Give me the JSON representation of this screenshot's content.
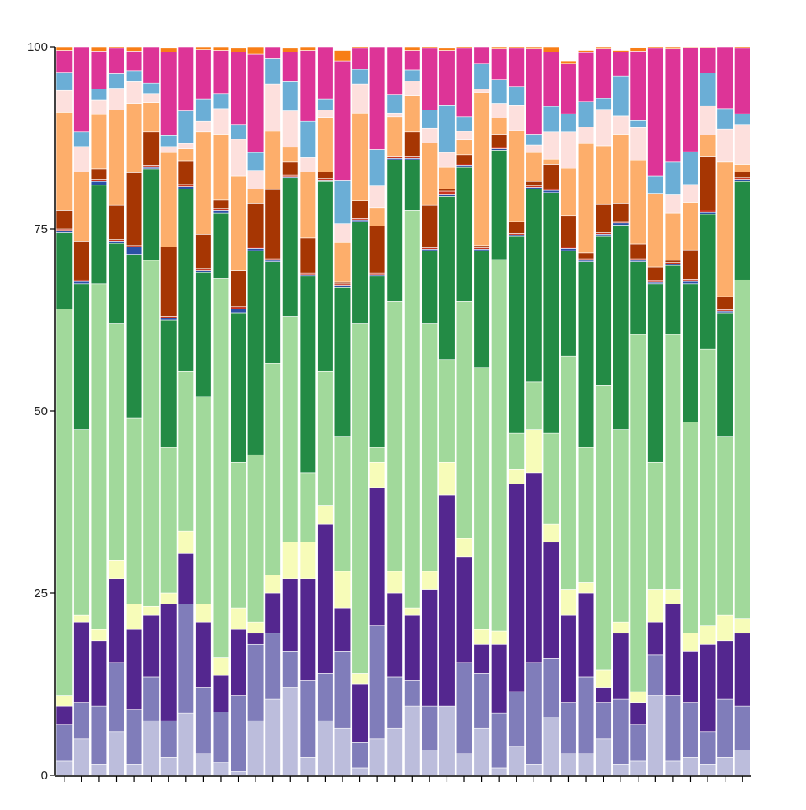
{
  "chart_data": {
    "type": "bar",
    "stacked": true,
    "orientation": "vertical",
    "title": "",
    "xlabel": "",
    "ylabel": "",
    "ylim": [
      0,
      100
    ],
    "yticks": [
      0,
      25,
      50,
      75,
      100
    ],
    "ytick_labels": [
      "0",
      "25",
      "50",
      "75",
      "100"
    ],
    "grid": false,
    "legend": "none",
    "bar_count": 40,
    "stack_order": [
      "c1",
      "c2",
      "c3",
      "c4",
      "c5",
      "c6",
      "c7",
      "c8",
      "c9",
      "c10",
      "c11",
      "c12",
      "c13",
      "c14"
    ],
    "colors": {
      "c1": "#bcbddc",
      "c2": "#807dba",
      "c3": "#54278f",
      "c4": "#f7fcb9",
      "c5": "#a1d99b",
      "c6": "#238b45",
      "c7": "#2b50a5",
      "c8": "#c8341f",
      "c9": "#a63603",
      "c10": "#fdae6b",
      "c11": "#fde0dd",
      "c12": "#6baed6",
      "c13": "#dd3497",
      "c14": "#f87e16"
    },
    "values": [
      [
        2,
        5,
        2.5,
        1.5,
        53,
        10.5,
        0.3,
        0.2,
        2.5,
        13.5,
        3,
        2.5,
        3,
        0.5
      ],
      [
        5,
        5,
        11,
        1,
        25.5,
        20,
        0.3,
        0.2,
        5.3,
        9.5,
        3.5,
        2,
        12,
        0.7
      ],
      [
        1.5,
        8,
        9,
        1.5,
        47.5,
        13.5,
        0.5,
        0.3,
        1.4,
        7.5,
        2,
        1.5,
        5.2,
        0.6
      ],
      [
        6,
        9.5,
        11.5,
        2.5,
        32.5,
        11,
        0.3,
        0.2,
        4.8,
        13,
        3,
        2,
        3.5,
        0.7
      ],
      [
        1.5,
        7.5,
        11,
        3.5,
        25.5,
        22.5,
        1,
        0.2,
        10,
        9.5,
        3,
        1.5,
        2.7,
        0.6
      ],
      [
        7.5,
        6,
        8.5,
        1.2,
        47.5,
        12.5,
        0.3,
        0.2,
        4.6,
        4,
        1.2,
        1.5,
        5,
        0.5
      ],
      [
        2.5,
        5,
        16,
        1.5,
        20,
        17.5,
        0.3,
        0.2,
        9.5,
        13,
        0.8,
        1.5,
        11.5,
        0.5
      ],
      [
        8.5,
        15,
        7,
        3,
        22,
        25,
        0.3,
        0.3,
        3.2,
        1.7,
        0.7,
        4.5,
        9,
        0.3
      ],
      [
        3,
        9,
        9,
        2.5,
        28.5,
        17,
        0.3,
        0.2,
        4.8,
        14,
        1.5,
        3,
        6.8,
        0.5
      ],
      [
        1.7,
        7,
        5,
        2.5,
        52,
        9,
        0.3,
        0.3,
        1.2,
        9,
        3.5,
        2,
        6,
        0.5
      ],
      [
        0.5,
        10.5,
        9,
        3,
        20,
        20.5,
        0.5,
        0.3,
        5,
        13,
        5,
        2,
        10,
        0.5
      ],
      [
        7.5,
        10.5,
        1.5,
        1.5,
        23,
        28,
        0.3,
        0.2,
        6,
        2,
        2.5,
        2.5,
        13.5,
        1
      ],
      [
        10.5,
        9,
        5.5,
        2.5,
        29,
        14,
        0.2,
        0.2,
        9.5,
        8,
        6.5,
        3.5,
        1.8,
        0.5
      ],
      [
        12,
        5,
        10,
        5,
        31,
        19,
        0.2,
        0.2,
        1.8,
        2,
        5,
        4,
        4.1,
        0.5
      ],
      [
        2.5,
        10.5,
        14,
        5,
        9.5,
        27,
        0.2,
        0.2,
        4.9,
        9,
        2,
        5,
        9.7,
        0.5
      ],
      [
        7.5,
        6.5,
        20.5,
        2.5,
        18.5,
        26,
        0.2,
        0.2,
        0.9,
        7.5,
        1,
        1.5,
        7.2,
        0.5
      ],
      [
        6.5,
        10.5,
        6,
        5,
        18.5,
        20.5,
        0.2,
        0.3,
        0.2,
        5.5,
        2.5,
        6,
        16.3,
        1.5
      ],
      [
        1,
        3.5,
        8,
        1.5,
        48,
        14,
        0.2,
        0.2,
        2.5,
        12,
        4,
        2,
        2.9,
        0.2
      ],
      [
        5,
        15.5,
        19,
        3.5,
        2,
        23.5,
        0.2,
        0.2,
        6.5,
        2.5,
        3,
        5,
        14.4,
        0.2
      ],
      [
        6.5,
        7,
        11.5,
        3,
        37,
        19.5,
        0.2,
        0.2,
        0,
        5.5,
        0.5,
        2.5,
        6.6,
        0.5
      ],
      [
        9.5,
        3.5,
        9,
        1,
        54.5,
        7,
        0.2,
        0.2,
        3.4,
        5,
        2,
        1.5,
        2.7,
        0.5
      ],
      [
        3.5,
        6,
        16,
        2.5,
        34,
        10,
        0.2,
        0.2,
        5.9,
        8.5,
        2,
        2.5,
        8.5,
        0.2
      ],
      [
        9.5,
        0,
        29,
        4.5,
        14,
        22.5,
        0.2,
        0.5,
        0.3,
        3,
        2,
        6.5,
        7.5,
        0.3
      ],
      [
        3,
        12.5,
        14.5,
        2.5,
        32.5,
        18.5,
        0.2,
        0.2,
        1.3,
        2,
        1.2,
        2,
        9.4,
        0.5
      ],
      [
        6.5,
        7.5,
        4,
        2,
        36,
        16,
        0.2,
        0.2,
        0.3,
        21,
        0.5,
        3.5,
        2.3,
        0.3
      ],
      [
        1,
        7.5,
        9.5,
        1.8,
        51,
        15,
        0.2,
        0.2,
        1.8,
        2.2,
        2,
        3.3,
        4.2,
        0.3
      ],
      [
        4,
        7.5,
        28.5,
        2,
        5,
        27,
        0.2,
        0.2,
        1.6,
        12.5,
        3.5,
        2.5,
        5.3,
        0.3
      ],
      [
        1.5,
        14,
        26,
        6,
        6.5,
        26.5,
        0.2,
        0.2,
        0.6,
        4,
        1,
        1.5,
        11.7,
        0.3
      ],
      [
        8,
        8,
        16,
        2.5,
        12.5,
        33,
        0.3,
        0.2,
        3.3,
        0.8,
        3.7,
        3.5,
        7.5,
        0.7
      ],
      [
        3,
        7,
        12,
        3.5,
        32,
        14.5,
        0.3,
        0.2,
        4.3,
        6.5,
        5,
        2.5,
        6.9,
        0.3
      ],
      [
        3,
        10.5,
        11.5,
        1.5,
        18.5,
        25.5,
        0.2,
        0.2,
        0.8,
        15,
        2.3,
        3.5,
        6.7,
        0.3
      ],
      [
        5,
        5,
        2,
        2.5,
        39,
        20.5,
        0.3,
        0.2,
        3.9,
        8,
        5,
        1.5,
        6.8,
        0.3
      ],
      [
        1.5,
        9,
        9,
        1.5,
        26.5,
        28,
        0.3,
        0.2,
        2.5,
        9.5,
        2.5,
        5.5,
        3.3,
        0.2
      ],
      [
        2,
        5,
        3,
        1.5,
        49,
        10,
        0.2,
        0.2,
        2,
        11.5,
        4.5,
        1,
        9.5,
        0.5
      ],
      [
        11,
        5.5,
        4.5,
        4.5,
        17.5,
        24.5,
        0.2,
        0.2,
        1.9,
        10,
        0,
        2.5,
        17.5,
        0.8
      ],
      [
        2,
        9,
        12.5,
        2,
        35,
        9.5,
        0.2,
        0.2,
        0.3,
        6.5,
        2.5,
        4.5,
        15.5,
        0.3
      ],
      [
        2.5,
        7.5,
        7,
        2.5,
        29,
        19,
        0.3,
        0.3,
        4,
        6.5,
        2.5,
        4.5,
        14.3,
        0.3
      ],
      [
        1.5,
        4.5,
        12,
        2.5,
        38,
        18.5,
        0.3,
        0.3,
        7.3,
        3,
        4,
        4.5,
        3.5,
        0.3
      ],
      [
        2.5,
        8,
        8,
        3.5,
        24.5,
        17,
        0.2,
        0.2,
        1.8,
        18.5,
        4.5,
        2.8,
        8.8,
        0.5
      ],
      [
        3.5,
        6,
        10,
        2,
        46.5,
        13.5,
        0.3,
        0.2,
        0.8,
        1,
        5.5,
        1.5,
        9,
        0.2
      ]
    ]
  }
}
